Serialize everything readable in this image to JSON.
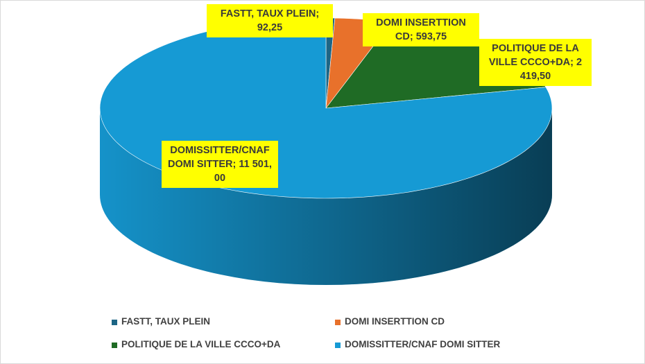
{
  "chart_data": {
    "type": "pie",
    "categories": [
      "FASTT, TAUX PLEIN",
      "DOMI INSERTTION CD",
      "POLITIQUE DE LA VILLE CCCO+DA",
      "DOMISSITTER/CNAF DOMI SITTER"
    ],
    "values": [
      92.25,
      593.75,
      2419.5,
      11501
    ],
    "value_labels": [
      "92,25",
      "593,75",
      "2 419,50",
      "11 501,00"
    ],
    "colors": [
      "#1d6585",
      "#e8712b",
      "#1f6b25",
      "#169ad4"
    ],
    "legend": "bottom"
  }
}
